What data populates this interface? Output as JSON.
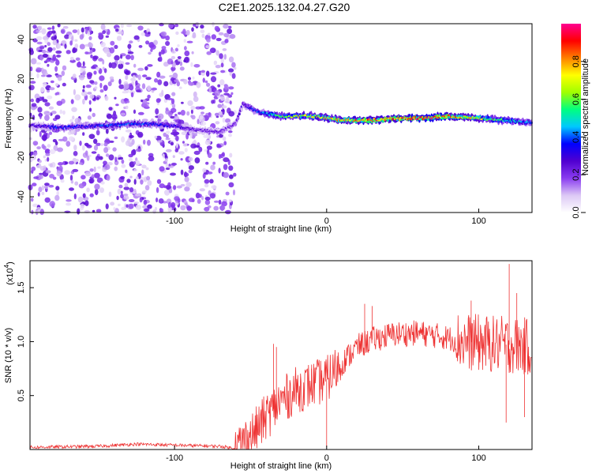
{
  "title": "C2E1.2025.132.04.27.G20",
  "chart_data": [
    {
      "type": "heatmap",
      "xlabel": "Height of straight line (km)",
      "ylabel": "Frequency (Hz)",
      "xlim": [
        -195,
        135
      ],
      "ylim": [
        -48,
        48
      ],
      "x_ticks": [
        -100,
        0,
        100
      ],
      "x_tick_labels": [
        "-100",
        "0",
        "100"
      ],
      "y_ticks": [
        -40,
        -20,
        0,
        20,
        40
      ],
      "y_tick_labels": [
        "-40",
        "-20",
        "0",
        "20",
        "40"
      ],
      "colorbar": {
        "label": "Normalized spectral amplitude",
        "range": [
          0,
          1
        ],
        "ticks": [
          0.0,
          0.2,
          0.4,
          0.6,
          0.8
        ],
        "tick_labels": [
          "0.0",
          "0.2",
          "0.4",
          "0.6",
          "0.8"
        ]
      },
      "ridge": [
        {
          "x": -190,
          "f": -4,
          "amp": 0.3
        },
        {
          "x": -175,
          "f": -5,
          "amp": 0.38
        },
        {
          "x": -160,
          "f": -4,
          "amp": 0.35
        },
        {
          "x": -145,
          "f": -4,
          "amp": 0.4
        },
        {
          "x": -130,
          "f": -3,
          "amp": 0.42
        },
        {
          "x": -115,
          "f": -3,
          "amp": 0.38
        },
        {
          "x": -100,
          "f": -4,
          "amp": 0.32
        },
        {
          "x": -85,
          "f": -6,
          "amp": 0.25
        },
        {
          "x": -70,
          "f": -7,
          "amp": 0.25
        },
        {
          "x": -60,
          "f": -3,
          "amp": 0.25
        },
        {
          "x": -55,
          "f": 7,
          "amp": 0.3
        },
        {
          "x": -45,
          "f": 3,
          "amp": 0.4
        },
        {
          "x": -30,
          "f": 1,
          "amp": 0.6
        },
        {
          "x": -10,
          "f": 1,
          "amp": 0.7
        },
        {
          "x": 10,
          "f": -1,
          "amp": 0.8
        },
        {
          "x": 30,
          "f": -1,
          "amp": 0.85
        },
        {
          "x": 50,
          "f": 0,
          "amp": 0.9
        },
        {
          "x": 65,
          "f": 0,
          "amp": 0.98
        },
        {
          "x": 80,
          "f": 1,
          "amp": 0.85
        },
        {
          "x": 100,
          "f": 0,
          "amp": 0.7
        },
        {
          "x": 115,
          "f": -1,
          "amp": 0.55
        },
        {
          "x": 130,
          "f": -2,
          "amp": 0.45
        }
      ],
      "color_scale": [
        "#ffffff",
        "#dcc8f5",
        "#8a3cf0",
        "#5000d0",
        "#0000ff",
        "#00c8ff",
        "#00ff80",
        "#a0ff00",
        "#ffff00",
        "#ff8000",
        "#ff0000",
        "#ff0090"
      ]
    },
    {
      "type": "line",
      "xlabel": "Height of straight line (km)",
      "ylabel": "SNR (10 * v/v)",
      "y_multiplier_label": "(x10",
      "y_multiplier_exp": "4",
      "y_multiplier_close": ")",
      "xlim": [
        -195,
        135
      ],
      "ylim": [
        0,
        1.75
      ],
      "x_ticks": [
        -100,
        0,
        100
      ],
      "x_tick_labels": [
        "-100",
        "0",
        "100"
      ],
      "y_ticks": [
        0.5,
        1.0,
        1.5
      ],
      "y_tick_labels": [
        "0.5",
        "1.0",
        "1.5"
      ],
      "color": "#ee3333",
      "envelope": [
        {
          "x": -195,
          "y": 0.02
        },
        {
          "x": -150,
          "y": 0.03
        },
        {
          "x": -125,
          "y": 0.05
        },
        {
          "x": -100,
          "y": 0.04
        },
        {
          "x": -70,
          "y": 0.03
        },
        {
          "x": -60,
          "y": 0.01
        },
        {
          "x": -48,
          "y": 0.15
        },
        {
          "x": -40,
          "y": 0.3
        },
        {
          "x": -30,
          "y": 0.45
        },
        {
          "x": -20,
          "y": 0.55
        },
        {
          "x": -10,
          "y": 0.6
        },
        {
          "x": 0,
          "y": 0.65
        },
        {
          "x": 10,
          "y": 0.8
        },
        {
          "x": 20,
          "y": 0.95
        },
        {
          "x": 30,
          "y": 1.02
        },
        {
          "x": 45,
          "y": 1.07
        },
        {
          "x": 60,
          "y": 1.08
        },
        {
          "x": 75,
          "y": 1.05
        },
        {
          "x": 90,
          "y": 1.0
        },
        {
          "x": 105,
          "y": 0.98
        },
        {
          "x": 120,
          "y": 0.97
        },
        {
          "x": 135,
          "y": 0.95
        }
      ],
      "spikes": [
        {
          "x": -35,
          "y": 0.98
        },
        {
          "x": -33,
          "y": 0.95
        },
        {
          "x": -10,
          "y": 0.75
        },
        {
          "x": 0,
          "y": 0.02
        },
        {
          "x": 25,
          "y": 1.35
        },
        {
          "x": 30,
          "y": 1.33
        },
        {
          "x": 95,
          "y": 1.38
        },
        {
          "x": 120,
          "y": 1.72
        },
        {
          "x": 118,
          "y": 0.25
        },
        {
          "x": 125,
          "y": 1.45
        },
        {
          "x": 130,
          "y": 0.3
        }
      ]
    }
  ]
}
